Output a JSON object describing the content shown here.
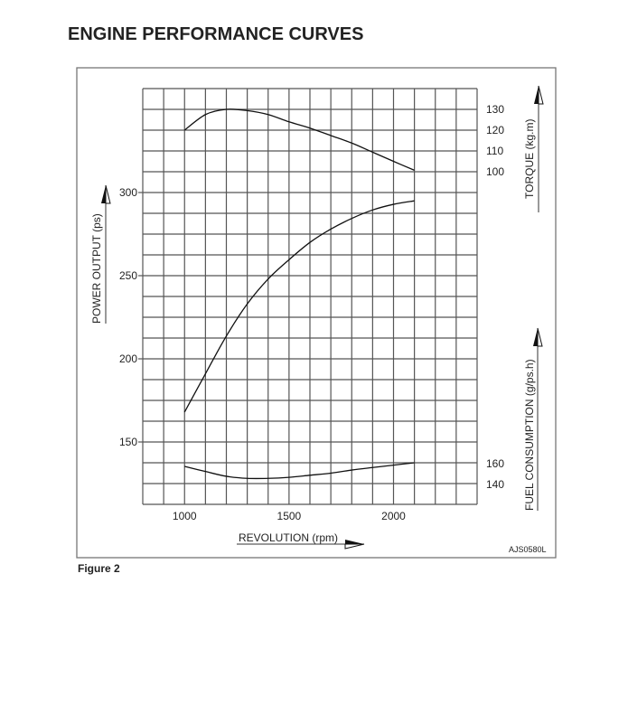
{
  "page": {
    "title": "ENGINE PERFORMANCE CURVES",
    "figure_label": "Figure 2",
    "code": "AJS0580L"
  },
  "chart_data": {
    "type": "line",
    "title": "ENGINE PERFORMANCE CURVES",
    "xlabel": "REVOLUTION (rpm)",
    "xlim": [
      800,
      2400
    ],
    "x_grid_step": 100,
    "x_ticks": [
      1000,
      1500,
      2000
    ],
    "grid": true,
    "axes": {
      "power": {
        "label": "POWER OUTPUT (ps)",
        "side": "left",
        "ylim": [
          112.5,
          362.5
        ],
        "ticks": [
          150,
          200,
          250,
          300
        ]
      },
      "torque": {
        "label": "TORQUE (kg.m)",
        "side": "right",
        "ticks": [
          100,
          110,
          120,
          130
        ]
      },
      "fuel": {
        "label": "FUEL CONSUMPTION (g/ps.h)",
        "side": "right",
        "ticks": [
          140,
          160
        ]
      }
    },
    "series": [
      {
        "axis": "torque",
        "x": [
          1000,
          1100,
          1200,
          1300,
          1400,
          1500,
          1600,
          1700,
          1800,
          1900,
          2000,
          2100
        ],
        "values": [
          120,
          127.5,
          130,
          129.4,
          127.5,
          124,
          121,
          117.4,
          113.8,
          109.4,
          105,
          100.7
        ]
      },
      {
        "axis": "power",
        "x": [
          1000,
          1100,
          1200,
          1300,
          1400,
          1500,
          1600,
          1700,
          1800,
          1900,
          2000,
          2100
        ],
        "values": [
          168,
          191,
          213.7,
          233,
          248,
          259.6,
          270,
          278,
          284.4,
          289.5,
          292.9,
          295
        ]
      },
      {
        "axis": "fuel",
        "x": [
          1000,
          1100,
          1200,
          1300,
          1400,
          1500,
          1600,
          1700,
          1800,
          1900,
          2000,
          2100
        ],
        "values": [
          156.5,
          151.6,
          147,
          145,
          145,
          146,
          148,
          150,
          153,
          155.4,
          157.7,
          160
        ]
      }
    ],
    "colors": {
      "line": "#111111",
      "grid": "#555555",
      "frame": "#777777"
    }
  }
}
